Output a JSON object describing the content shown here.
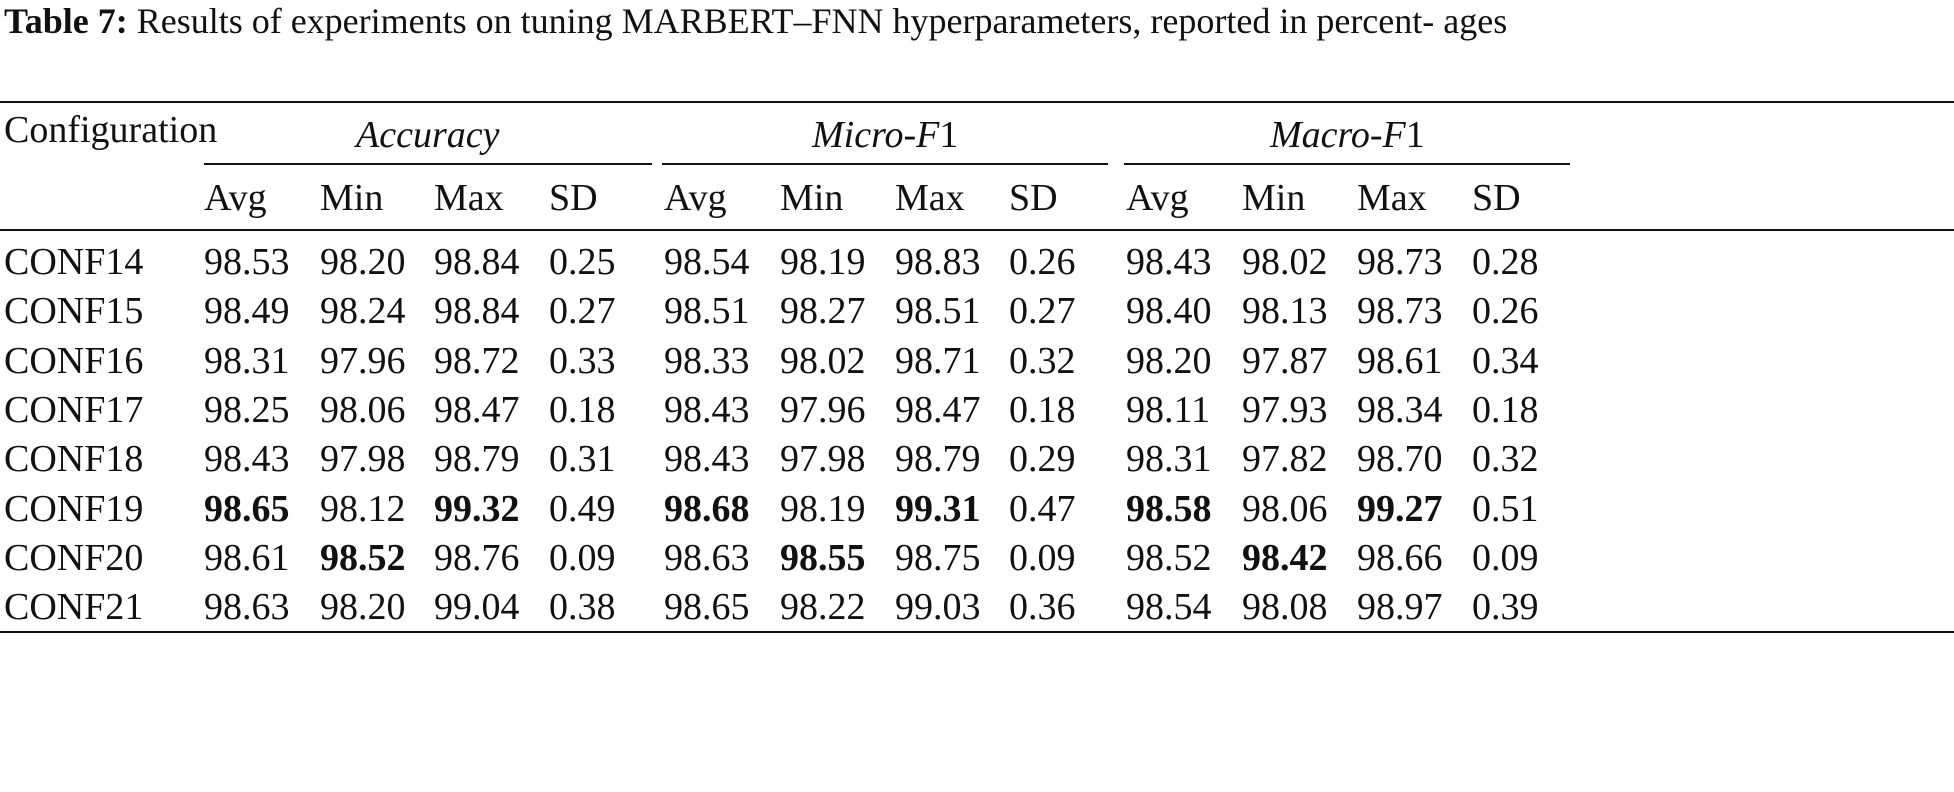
{
  "caption": {
    "label": "Table 7:",
    "text": "Results of experiments on tuning MARBERT–FNN hyperparameters, reported in percent- ages"
  },
  "table": {
    "row_header": "Configuration",
    "groups": [
      {
        "label_italic": "Accuracy",
        "label_suffix": ""
      },
      {
        "label_italic": "Micro-F",
        "label_suffix": "1"
      },
      {
        "label_italic": "Macro-F",
        "label_suffix": "1"
      }
    ],
    "subheaders": [
      "Avg",
      "Min",
      "Max",
      "SD"
    ],
    "rows": [
      {
        "name": "CONF14",
        "values": [
          "98.53",
          "98.20",
          "98.84",
          "0.25",
          "98.54",
          "98.19",
          "98.83",
          "0.26",
          "98.43",
          "98.02",
          "98.73",
          "0.28"
        ],
        "bold": []
      },
      {
        "name": "CONF15",
        "values": [
          "98.49",
          "98.24",
          "98.84",
          "0.27",
          "98.51",
          "98.27",
          "98.51",
          "0.27",
          "98.40",
          "98.13",
          "98.73",
          "0.26"
        ],
        "bold": []
      },
      {
        "name": "CONF16",
        "values": [
          "98.31",
          "97.96",
          "98.72",
          "0.33",
          "98.33",
          "98.02",
          "98.71",
          "0.32",
          "98.20",
          "97.87",
          "98.61",
          "0.34"
        ],
        "bold": []
      },
      {
        "name": "CONF17",
        "values": [
          "98.25",
          "98.06",
          "98.47",
          "0.18",
          "98.43",
          "97.96",
          "98.47",
          "0.18",
          "98.11",
          "97.93",
          "98.34",
          "0.18"
        ],
        "bold": []
      },
      {
        "name": "CONF18",
        "values": [
          "98.43",
          "97.98",
          "98.79",
          "0.31",
          "98.43",
          "97.98",
          "98.79",
          "0.29",
          "98.31",
          "97.82",
          "98.70",
          "0.32"
        ],
        "bold": []
      },
      {
        "name": "CONF19",
        "values": [
          "98.65",
          "98.12",
          "99.32",
          "0.49",
          "98.68",
          "98.19",
          "99.31",
          "0.47",
          "98.58",
          "98.06",
          "99.27",
          "0.51"
        ],
        "bold": [
          0,
          2,
          4,
          6,
          8,
          10
        ]
      },
      {
        "name": "CONF20",
        "values": [
          "98.61",
          "98.52",
          "98.76",
          "0.09",
          "98.63",
          "98.55",
          "98.75",
          "0.09",
          "98.52",
          "98.42",
          "98.66",
          "0.09"
        ],
        "bold": [
          1,
          5,
          9
        ]
      },
      {
        "name": "CONF21",
        "values": [
          "98.63",
          "98.20",
          "99.04",
          "0.38",
          "98.65",
          "98.22",
          "99.03",
          "0.36",
          "98.54",
          "98.08",
          "98.97",
          "0.39"
        ],
        "bold": []
      }
    ]
  }
}
